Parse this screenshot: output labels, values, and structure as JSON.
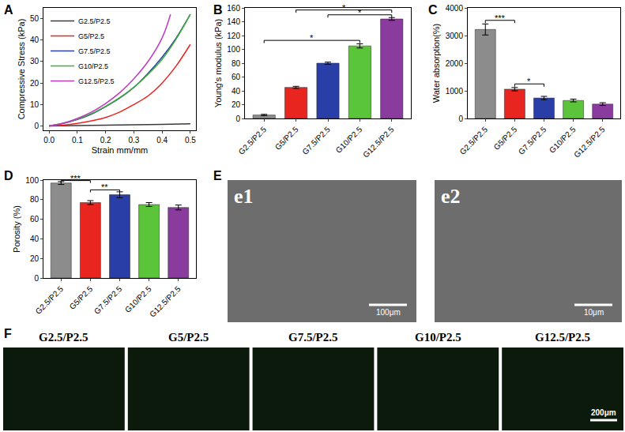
{
  "chart_data": [
    {
      "panel": "A",
      "type": "line",
      "x_label": "Strain mm/mm",
      "y_label": "Compressive Stress (kPa)",
      "series": [
        {
          "name": "G2.5/P2.5",
          "color": "#3a3a3a",
          "x": [
            0,
            0.1,
            0.2,
            0.3,
            0.4,
            0.5
          ],
          "values": [
            0,
            0.2,
            0.4,
            0.6,
            0.8,
            1.0
          ]
        },
        {
          "name": "G5/P2.5",
          "color": "#e8251f",
          "x": [
            0,
            0.05,
            0.1,
            0.15,
            0.2,
            0.25,
            0.3,
            0.35,
            0.4,
            0.45,
            0.5
          ],
          "values": [
            0,
            0.4,
            1.2,
            2.4,
            4,
            6.5,
            10,
            14,
            20,
            28,
            38
          ]
        },
        {
          "name": "G7.5/P2.5",
          "color": "#2a3ea8",
          "x": [
            0,
            0.05,
            0.1,
            0.15,
            0.2,
            0.25,
            0.3,
            0.35,
            0.4,
            0.45,
            0.5
          ],
          "values": [
            0,
            1.2,
            3,
            5.5,
            9,
            13,
            18,
            24.5,
            32,
            41,
            52
          ]
        },
        {
          "name": "G10/P2.5",
          "color": "#3fae3a",
          "x": [
            0,
            0.05,
            0.1,
            0.15,
            0.2,
            0.25,
            0.3,
            0.35,
            0.4,
            0.45,
            0.5
          ],
          "values": [
            0,
            1.3,
            3.2,
            5.8,
            9.2,
            13.2,
            18,
            24,
            31,
            40.5,
            52
          ]
        },
        {
          "name": "G12.5/P2.5",
          "color": "#c03bc0",
          "x": [
            0,
            0.05,
            0.1,
            0.15,
            0.2,
            0.25,
            0.3,
            0.35,
            0.4,
            0.43
          ],
          "values": [
            0,
            1.3,
            3.5,
            6.5,
            10.5,
            15.5,
            22,
            30,
            41,
            52
          ]
        }
      ],
      "xlim": [
        -0.02,
        0.52
      ],
      "xticks": [
        {
          "value": 0,
          "label": "0.0"
        },
        {
          "value": 0.1,
          "label": "0.1"
        },
        {
          "value": 0.2,
          "label": "0.2"
        },
        {
          "value": 0.3,
          "label": "0.3"
        },
        {
          "value": 0.4,
          "label": "0.4"
        },
        {
          "value": 0.5,
          "label": "0.5"
        }
      ],
      "ylim": [
        -2,
        55
      ],
      "yticks": [
        0,
        10,
        20,
        30,
        40,
        50
      ],
      "legend": "top left"
    },
    {
      "panel": "B",
      "type": "bar",
      "y_label": "Young's modulus (kPa)",
      "categories": [
        "G2.5/P2.5",
        "G5/P2.5",
        "G7.5/P2.5",
        "G10/P2.5",
        "G12.5/P2.5"
      ],
      "values": [
        5,
        45,
        80,
        105,
        144
      ],
      "errors": [
        1,
        1.5,
        1.5,
        3,
        2
      ],
      "colors": [
        "#8c8c8c",
        "#e8251f",
        "#2a3ea8",
        "#5cc43a",
        "#8a3b9e"
      ],
      "ylim": [
        0,
        160
      ],
      "yticks": [
        0,
        20,
        40,
        60,
        80,
        100,
        120,
        140,
        160
      ],
      "significance": [
        {
          "from": "G2.5/P2.5",
          "to": "G10/P2.5",
          "y": 113,
          "label": "*"
        },
        {
          "from": "G7.5/P2.5",
          "to": "G12.5/P2.5",
          "y": 150,
          "label": "*"
        },
        {
          "from": "G5/P2.5",
          "to": "G12.5/P2.5",
          "y": 157,
          "label": "*"
        }
      ]
    },
    {
      "panel": "C",
      "type": "bar",
      "y_label": "Water absorption(%)",
      "categories": [
        "G2.5/P2.5",
        "G5/P2.5",
        "G7.5/P2.5",
        "G10/P2.5",
        "G12.5/P2.5"
      ],
      "values": [
        3220,
        1060,
        740,
        650,
        520
      ],
      "errors": [
        200,
        60,
        60,
        50,
        50
      ],
      "colors": [
        "#8c8c8c",
        "#e8251f",
        "#2a3ea8",
        "#5cc43a",
        "#8a3b9e"
      ],
      "ylim": [
        0,
        4000
      ],
      "yticks": [
        0,
        1000,
        2000,
        3000,
        4000
      ],
      "significance": [
        {
          "from": "G2.5/P2.5",
          "to": "G5/P2.5",
          "y": 3550,
          "label": "***"
        },
        {
          "from": "G5/P2.5",
          "to": "G7.5/P2.5",
          "y": 1250,
          "label": "*"
        }
      ]
    },
    {
      "panel": "D",
      "type": "bar",
      "y_label": "Porosity (%)",
      "categories": [
        "G2.5/P2.5",
        "G5/P2.5",
        "G7.5/P2.5",
        "G10/P2.5",
        "G12.5/P2.5"
      ],
      "values": [
        97,
        77,
        85,
        75,
        72
      ],
      "errors": [
        1.5,
        2,
        3,
        2,
        2.5
      ],
      "colors": [
        "#8c8c8c",
        "#e8251f",
        "#2a3ea8",
        "#5cc43a",
        "#8a3b9e"
      ],
      "ylim": [
        0,
        100
      ],
      "yticks": [
        0,
        20,
        40,
        60,
        80,
        100
      ],
      "significance": [
        {
          "from": "G2.5/P2.5",
          "to": "G5/P2.5",
          "y": 99.5,
          "label": "***"
        },
        {
          "from": "G5/P2.5",
          "to": "G7.5/P2.5",
          "y": 90,
          "label": "**"
        }
      ]
    }
  ],
  "images": [
    {
      "panel": "E",
      "subpanels": [
        {
          "label": "e1",
          "scale_bar": "100μm"
        },
        {
          "label": "e2",
          "scale_bar": "10μm"
        }
      ]
    },
    {
      "panel": "F",
      "subpanels": [
        {
          "label": "G2.5/P2.5"
        },
        {
          "label": "G5/P2.5"
        },
        {
          "label": "G7.5/P2.5"
        },
        {
          "label": "G10/P2.5"
        },
        {
          "label": "G12.5/P2.5"
        }
      ],
      "scale_bar": "200μm"
    }
  ]
}
